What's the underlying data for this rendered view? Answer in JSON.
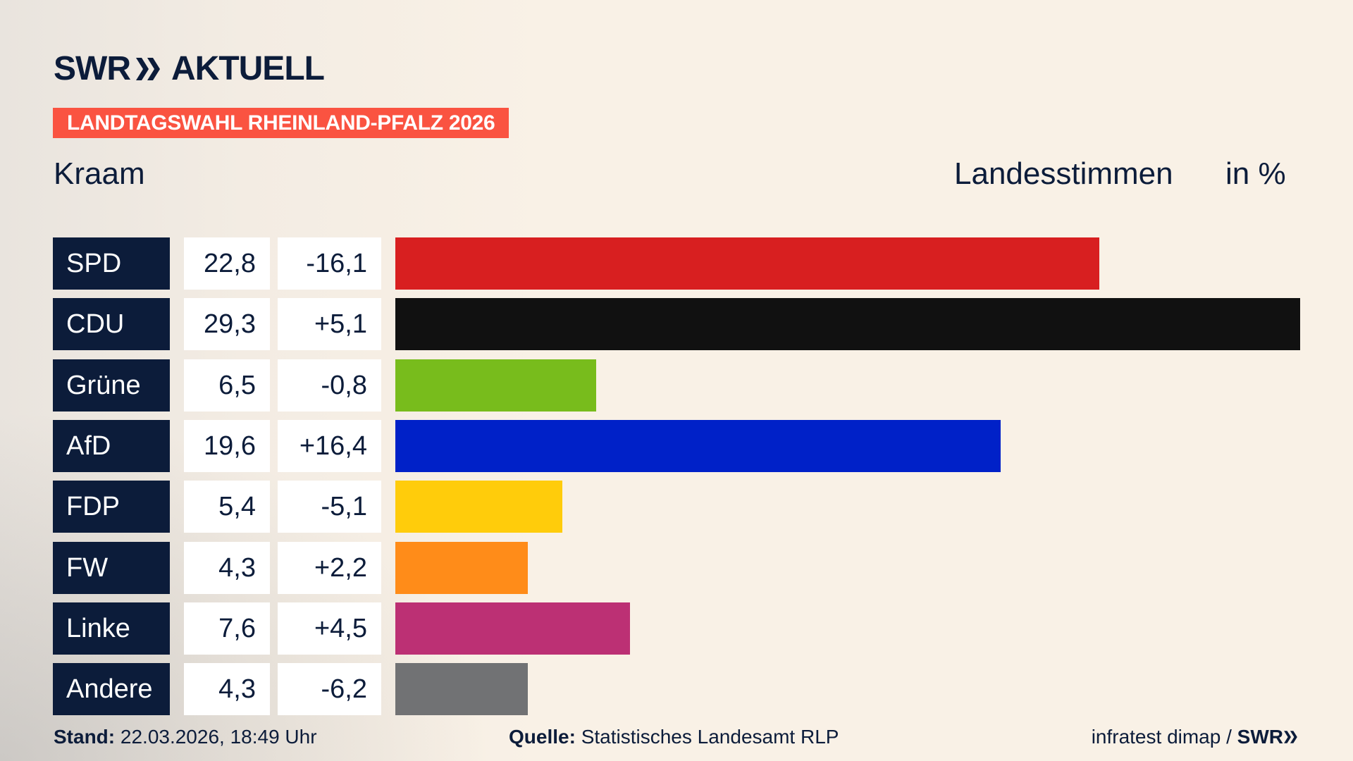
{
  "header": {
    "logo": "SWR AKTUELL",
    "logo_word": "AKTUELL",
    "logo_brand": "SWR",
    "banner": "LANDTAGSWAHL RHEINLAND-PFALZ 2026"
  },
  "subheader": {
    "region": "Kraam",
    "metric": "Landesstimmen",
    "unit": "in %"
  },
  "chart_data": {
    "type": "bar",
    "orientation": "horizontal",
    "categories": [
      "SPD",
      "CDU",
      "Grüne",
      "AfD",
      "FDP",
      "FW",
      "Linke",
      "Andere"
    ],
    "values": [
      22.8,
      29.3,
      6.5,
      19.6,
      5.4,
      4.3,
      7.6,
      4.3
    ],
    "value_labels": [
      "22,8",
      "29,3",
      "6,5",
      "19,6",
      "5,4",
      "4,3",
      "7,6",
      "4,3"
    ],
    "changes": [
      -16.1,
      5.1,
      -0.8,
      16.4,
      -5.1,
      2.2,
      4.5,
      -6.2
    ],
    "change_labels": [
      "-16,1",
      "+5,1",
      "-0,8",
      "+16,4",
      "-5,1",
      "+2,2",
      "+4,5",
      "-6,2"
    ],
    "colors": [
      "#d81f20",
      "#111111",
      "#78bc1c",
      "#0021c8",
      "#ffcc0b",
      "#ff8c19",
      "#bc3074",
      "#717274"
    ],
    "grid": false
  },
  "footer": {
    "stand_label": "Stand:",
    "stand_value": " 22.03.2026, 18:49 Uhr",
    "source_label": "Quelle:",
    "source_value": " Statistisches Landesamt RLP",
    "credit": "infratest dimap / ",
    "credit_brand": "SWR"
  }
}
